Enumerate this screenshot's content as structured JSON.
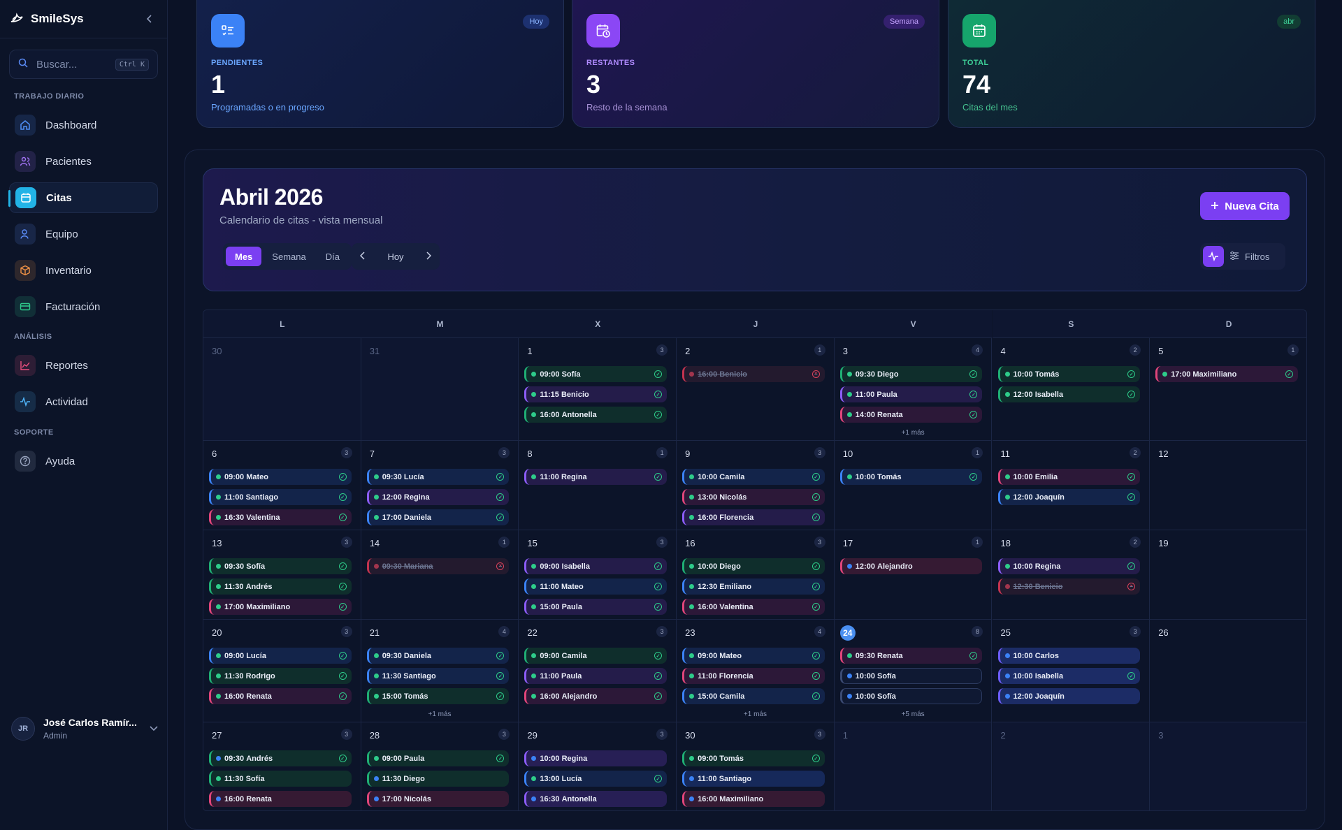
{
  "app": {
    "name": "SmileSys"
  },
  "search": {
    "placeholder": "Buscar...",
    "shortcut": "Ctrl K"
  },
  "sidebar": {
    "sections": [
      {
        "label": "TRABAJO DIARIO",
        "items": [
          {
            "label": "Dashboard",
            "icon": "home-icon",
            "color": "#4f8ff7",
            "active": false
          },
          {
            "label": "Pacientes",
            "icon": "users-icon",
            "color": "#a374f6",
            "active": false
          },
          {
            "label": "Citas",
            "icon": "calendar-icon",
            "color": "#22b3e6",
            "active": true
          },
          {
            "label": "Equipo",
            "icon": "user-icon",
            "color": "#5b8cf7",
            "active": false
          },
          {
            "label": "Inventario",
            "icon": "box-icon",
            "color": "#f09246",
            "active": false
          },
          {
            "label": "Facturación",
            "icon": "credit-card-icon",
            "color": "#2fca8b",
            "active": false
          }
        ]
      },
      {
        "label": "ANÁLISIS",
        "items": [
          {
            "label": "Reportes",
            "icon": "chart-icon",
            "color": "#ea4f7e",
            "active": false
          },
          {
            "label": "Actividad",
            "icon": "activity-icon",
            "color": "#4fb3f7",
            "active": false
          }
        ]
      },
      {
        "label": "SOPORTE",
        "items": [
          {
            "label": "Ayuda",
            "icon": "help-icon",
            "color": "#9aa5c0",
            "active": false
          }
        ]
      }
    ]
  },
  "user": {
    "initials": "JR",
    "name": "José Carlos Ramír...",
    "role": "Admin"
  },
  "stats": [
    {
      "label": "PENDIENTES",
      "value": "1",
      "sub": "Programadas o en progreso",
      "badge": "Hoy",
      "icon": "checklist-icon",
      "color": "#3b82f6"
    },
    {
      "label": "RESTANTES",
      "value": "3",
      "sub": "Resto de la semana",
      "badge": "Semana",
      "icon": "calendar-clock-icon",
      "color": "#8b47f5"
    },
    {
      "label": "TOTAL",
      "value": "74",
      "sub": "Citas del mes",
      "badge": "abr",
      "icon": "calendar-icon",
      "color": "#16a56c"
    }
  ],
  "calendar": {
    "title": "Abril 2026",
    "subtitle": "Calendario de citas - vista mensual",
    "new_button": "Nueva Cita",
    "views": [
      "Mes",
      "Semana",
      "Día"
    ],
    "active_view": "Mes",
    "today_label": "Hoy",
    "filters_label": "Filtros",
    "weekdays": [
      "L",
      "M",
      "X",
      "J",
      "V",
      "S",
      "D"
    ],
    "weeks": [
      [
        {
          "day": "30",
          "out": true
        },
        {
          "day": "31",
          "out": true
        },
        {
          "day": "1",
          "count": "3",
          "appts": [
            {
              "time": "09:00",
              "name": "Sofía",
              "color": "green",
              "status": "done"
            },
            {
              "time": "11:15",
              "name": "Benicio",
              "color": "purple",
              "status": "done"
            },
            {
              "time": "16:00",
              "name": "Antonella",
              "color": "green",
              "status": "done"
            }
          ]
        },
        {
          "day": "2",
          "count": "1",
          "appts": [
            {
              "time": "16:00",
              "name": "Benicio",
              "color": "red",
              "status": "cancel"
            }
          ]
        },
        {
          "day": "3",
          "count": "4",
          "more": "+1 más",
          "appts": [
            {
              "time": "09:30",
              "name": "Diego",
              "color": "green",
              "status": "done"
            },
            {
              "time": "11:00",
              "name": "Paula",
              "color": "purple",
              "status": "done"
            },
            {
              "time": "14:00",
              "name": "Renata",
              "color": "pink",
              "status": "done"
            }
          ]
        },
        {
          "day": "4",
          "count": "2",
          "appts": [
            {
              "time": "10:00",
              "name": "Tomás",
              "color": "green",
              "status": "done"
            },
            {
              "time": "12:00",
              "name": "Isabella",
              "color": "green",
              "status": "done"
            }
          ]
        },
        {
          "day": "5",
          "count": "1",
          "appts": [
            {
              "time": "17:00",
              "name": "Maximiliano",
              "color": "pink",
              "status": "done"
            }
          ]
        }
      ],
      [
        {
          "day": "6",
          "count": "3",
          "appts": [
            {
              "time": "09:00",
              "name": "Mateo",
              "color": "blue",
              "status": "done"
            },
            {
              "time": "11:00",
              "name": "Santiago",
              "color": "blue",
              "status": "done"
            },
            {
              "time": "16:30",
              "name": "Valentina",
              "color": "pink",
              "status": "done"
            }
          ]
        },
        {
          "day": "7",
          "count": "3",
          "appts": [
            {
              "time": "09:30",
              "name": "Lucía",
              "color": "blue",
              "status": "done"
            },
            {
              "time": "12:00",
              "name": "Regina",
              "color": "purple",
              "status": "done"
            },
            {
              "time": "17:00",
              "name": "Daniela",
              "color": "blue",
              "status": "done"
            }
          ]
        },
        {
          "day": "8",
          "count": "1",
          "appts": [
            {
              "time": "11:00",
              "name": "Regina",
              "color": "purple",
              "status": "done"
            }
          ]
        },
        {
          "day": "9",
          "count": "3",
          "appts": [
            {
              "time": "10:00",
              "name": "Camila",
              "color": "blue",
              "status": "done"
            },
            {
              "time": "13:00",
              "name": "Nicolás",
              "color": "pink",
              "status": "done"
            },
            {
              "time": "16:00",
              "name": "Florencia",
              "color": "purple",
              "status": "done"
            }
          ]
        },
        {
          "day": "10",
          "count": "1",
          "appts": [
            {
              "time": "10:00",
              "name": "Tomás",
              "color": "blue",
              "status": "done"
            }
          ]
        },
        {
          "day": "11",
          "count": "2",
          "appts": [
            {
              "time": "10:00",
              "name": "Emilia",
              "color": "pink",
              "status": "done"
            },
            {
              "time": "12:00",
              "name": "Joaquín",
              "color": "blue",
              "status": "done"
            }
          ]
        },
        {
          "day": "12"
        }
      ],
      [
        {
          "day": "13",
          "count": "3",
          "appts": [
            {
              "time": "09:30",
              "name": "Sofía",
              "color": "green",
              "status": "done"
            },
            {
              "time": "11:30",
              "name": "Andrés",
              "color": "green",
              "status": "done"
            },
            {
              "time": "17:00",
              "name": "Maximiliano",
              "color": "pink",
              "status": "done"
            }
          ]
        },
        {
          "day": "14",
          "count": "1",
          "appts": [
            {
              "time": "09:30",
              "name": "Mariana",
              "color": "red",
              "status": "cancel"
            }
          ]
        },
        {
          "day": "15",
          "count": "3",
          "appts": [
            {
              "time": "09:00",
              "name": "Isabella",
              "color": "purple",
              "status": "done"
            },
            {
              "time": "11:00",
              "name": "Mateo",
              "color": "blue",
              "status": "done"
            },
            {
              "time": "15:00",
              "name": "Paula",
              "color": "purple",
              "status": "done"
            }
          ]
        },
        {
          "day": "16",
          "count": "3",
          "appts": [
            {
              "time": "10:00",
              "name": "Diego",
              "color": "green",
              "status": "done"
            },
            {
              "time": "12:30",
              "name": "Emiliano",
              "color": "blue",
              "status": "done"
            },
            {
              "time": "16:00",
              "name": "Valentina",
              "color": "pink",
              "status": "done"
            }
          ]
        },
        {
          "day": "17",
          "count": "1",
          "appts": [
            {
              "time": "12:00",
              "name": "Alejandro",
              "color": "pinkblue",
              "status": "none"
            }
          ]
        },
        {
          "day": "18",
          "count": "2",
          "appts": [
            {
              "time": "10:00",
              "name": "Regina",
              "color": "purple",
              "status": "done"
            },
            {
              "time": "12:30",
              "name": "Benicio",
              "color": "red",
              "status": "cancel"
            }
          ]
        },
        {
          "day": "19"
        }
      ],
      [
        {
          "day": "20",
          "count": "3",
          "appts": [
            {
              "time": "09:00",
              "name": "Lucía",
              "color": "blue",
              "status": "done"
            },
            {
              "time": "11:30",
              "name": "Rodrigo",
              "color": "green",
              "status": "done"
            },
            {
              "time": "16:00",
              "name": "Renata",
              "color": "pink",
              "status": "done"
            }
          ]
        },
        {
          "day": "21",
          "count": "4",
          "more": "+1 más",
          "appts": [
            {
              "time": "09:30",
              "name": "Daniela",
              "color": "blue",
              "status": "done"
            },
            {
              "time": "11:30",
              "name": "Santiago",
              "color": "blue",
              "status": "done"
            },
            {
              "time": "15:00",
              "name": "Tomás",
              "color": "green",
              "status": "done"
            }
          ]
        },
        {
          "day": "22",
          "count": "3",
          "appts": [
            {
              "time": "09:00",
              "name": "Camila",
              "color": "green",
              "status": "done"
            },
            {
              "time": "11:00",
              "name": "Paula",
              "color": "purple",
              "status": "done"
            },
            {
              "time": "16:00",
              "name": "Alejandro",
              "color": "pink",
              "status": "done"
            }
          ]
        },
        {
          "day": "23",
          "count": "4",
          "more": "+1 más",
          "appts": [
            {
              "time": "09:00",
              "name": "Mateo",
              "color": "blue",
              "status": "done"
            },
            {
              "time": "11:00",
              "name": "Florencia",
              "color": "pink",
              "status": "done"
            },
            {
              "time": "15:00",
              "name": "Camila",
              "color": "blue",
              "status": "done"
            }
          ]
        },
        {
          "day": "24",
          "today": true,
          "count": "8",
          "more": "+5 más",
          "appts": [
            {
              "time": "09:30",
              "name": "Renata",
              "color": "pink",
              "status": "done"
            },
            {
              "time": "10:00",
              "name": "Sofía",
              "color": "outline",
              "status": "none"
            },
            {
              "time": "10:00",
              "name": "Sofía",
              "color": "outline",
              "status": "none"
            }
          ]
        },
        {
          "day": "25",
          "count": "3",
          "appts": [
            {
              "time": "10:00",
              "name": "Carlos",
              "color": "bluefill",
              "status": "none"
            },
            {
              "time": "10:00",
              "name": "Isabella",
              "color": "bluefill",
              "status": "done"
            },
            {
              "time": "12:00",
              "name": "Joaquín",
              "color": "bluefill",
              "status": "none"
            }
          ]
        },
        {
          "day": "26"
        }
      ],
      [
        {
          "day": "27",
          "count": "3",
          "appts": [
            {
              "time": "09:30",
              "name": "Andrés",
              "color": "greenblue",
              "status": "done"
            },
            {
              "time": "11:30",
              "name": "Sofía",
              "color": "green",
              "status": "none"
            },
            {
              "time": "16:00",
              "name": "Renata",
              "color": "pinkblue",
              "status": "none"
            }
          ]
        },
        {
          "day": "28",
          "count": "3",
          "appts": [
            {
              "time": "09:00",
              "name": "Paula",
              "color": "green",
              "status": "done"
            },
            {
              "time": "11:30",
              "name": "Diego",
              "color": "greenblue",
              "status": "none"
            },
            {
              "time": "17:00",
              "name": "Nicolás",
              "color": "pinkblue",
              "status": "none"
            }
          ]
        },
        {
          "day": "29",
          "count": "3",
          "appts": [
            {
              "time": "10:00",
              "name": "Regina",
              "color": "purpleblue",
              "status": "none"
            },
            {
              "time": "13:00",
              "name": "Lucía",
              "color": "blue",
              "status": "done"
            },
            {
              "time": "16:30",
              "name": "Antonella",
              "color": "purpleblue",
              "status": "none"
            }
          ]
        },
        {
          "day": "30",
          "count": "3",
          "appts": [
            {
              "time": "09:00",
              "name": "Tomás",
              "color": "green",
              "status": "done"
            },
            {
              "time": "11:00",
              "name": "Santiago",
              "color": "bluefill2",
              "status": "none"
            },
            {
              "time": "16:00",
              "name": "Maximiliano",
              "color": "pinkblue",
              "status": "none"
            }
          ]
        },
        {
          "day": "1",
          "out": true
        },
        {
          "day": "2",
          "out": true
        },
        {
          "day": "3",
          "out": true
        }
      ]
    ]
  }
}
